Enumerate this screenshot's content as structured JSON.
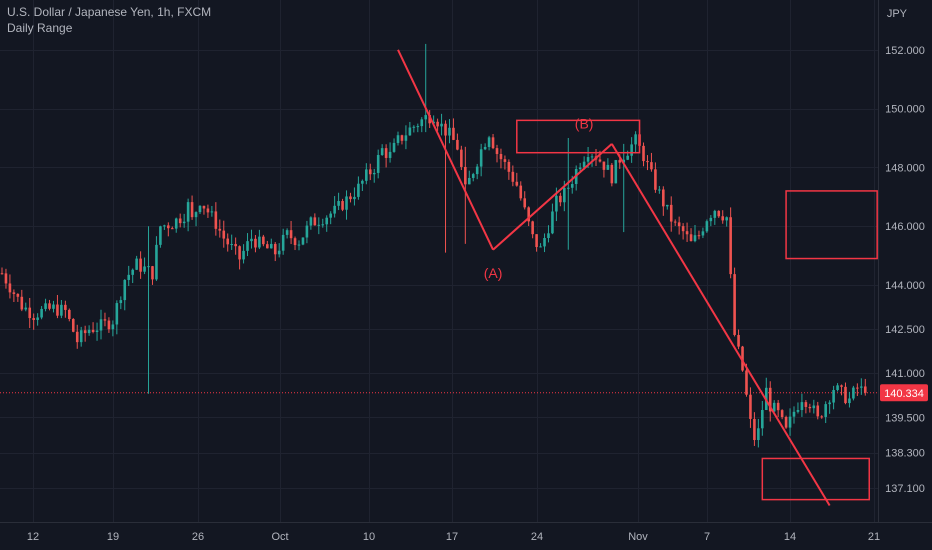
{
  "header": {
    "title": "U.S. Dollar / Japanese Yen, 1h, FXCM",
    "subtitle": "Daily Range",
    "currency": "JPY"
  },
  "colors": {
    "background": "#131722",
    "grid": "#1f2330",
    "up": "#26a69a",
    "down": "#ef5350",
    "drawing": "#f23645",
    "axis_text": "#b2b5be"
  },
  "chart_data": {
    "type": "candlestick",
    "symbol": "USDJPY",
    "interval": "1h",
    "y_ticks": [
      152.0,
      150.0,
      148.0,
      146.0,
      144.0,
      142.5,
      141.0,
      139.5,
      138.3,
      137.1
    ],
    "y_tick_labels": [
      "152.000",
      "150.000",
      "148.000",
      "146.000",
      "144.000",
      "142.500",
      "141.000",
      "139.500",
      "138.300",
      "137.100"
    ],
    "x_labels": [
      "12",
      "19",
      "26",
      "Oct",
      "10",
      "17",
      "24",
      "Nov",
      "7",
      "14",
      "21"
    ],
    "last_price": 140.334,
    "last_price_label": "140.334",
    "price_path": [
      [
        0,
        144.4
      ],
      [
        5,
        143.3
      ],
      [
        8,
        143.0
      ],
      [
        10,
        143.1
      ],
      [
        13,
        143.2
      ],
      [
        16,
        143.1
      ],
      [
        19,
        142.1
      ],
      [
        22,
        142.5
      ],
      [
        25,
        142.6
      ],
      [
        28,
        142.8
      ],
      [
        31,
        144.2
      ],
      [
        34,
        144.7
      ],
      [
        38,
        144.4
      ],
      [
        40,
        146.0
      ],
      [
        43,
        146.1
      ],
      [
        46,
        146.4
      ],
      [
        47,
        146.7
      ],
      [
        48,
        146.2
      ],
      [
        50,
        146.9
      ],
      [
        52,
        146.5
      ],
      [
        54,
        146.1
      ],
      [
        56,
        145.6
      ],
      [
        60,
        144.9
      ],
      [
        63,
        145.6
      ],
      [
        66,
        145.3
      ],
      [
        69,
        145.1
      ],
      [
        72,
        145.7
      ],
      [
        75,
        145.5
      ],
      [
        78,
        146.1
      ],
      [
        81,
        146.3
      ],
      [
        84,
        146.5
      ],
      [
        87,
        146.9
      ],
      [
        90,
        147.3
      ],
      [
        92,
        147.7
      ],
      [
        94,
        148.0
      ],
      [
        96,
        148.6
      ],
      [
        98,
        148.4
      ],
      [
        100,
        148.9
      ],
      [
        103,
        149.3
      ],
      [
        107,
        149.7
      ],
      [
        109,
        149.8
      ],
      [
        111,
        149.4
      ],
      [
        113,
        149.1
      ],
      [
        115,
        148.7
      ],
      [
        117,
        147.2
      ],
      [
        119,
        147.9
      ],
      [
        121,
        148.6
      ],
      [
        123,
        149.2
      ],
      [
        125,
        148.5
      ],
      [
        127,
        148.1
      ],
      [
        130,
        147.4
      ],
      [
        132,
        146.5
      ],
      [
        134,
        145.6
      ],
      [
        136,
        145.2
      ],
      [
        138,
        146.0
      ],
      [
        140,
        146.8
      ],
      [
        142,
        147.1
      ],
      [
        144,
        147.6
      ],
      [
        146,
        148.2
      ],
      [
        148,
        148.6
      ],
      [
        150,
        148.4
      ],
      [
        152,
        148.1
      ],
      [
        154,
        147.7
      ],
      [
        156,
        148.3
      ],
      [
        158,
        148.6
      ],
      [
        160,
        148.9
      ],
      [
        162,
        148.4
      ],
      [
        164,
        147.7
      ],
      [
        166,
        147.1
      ],
      [
        168,
        146.5
      ],
      [
        170,
        146.0
      ],
      [
        172,
        145.8
      ],
      [
        174,
        145.4
      ],
      [
        176,
        145.7
      ],
      [
        178,
        146.3
      ],
      [
        180,
        146.6
      ],
      [
        182,
        146.4
      ],
      [
        183,
        146.3
      ],
      [
        184,
        144.2
      ],
      [
        185,
        142.3
      ],
      [
        186,
        141.7
      ],
      [
        187,
        141.1
      ],
      [
        188,
        140.2
      ],
      [
        189,
        139.3
      ],
      [
        190,
        138.8
      ],
      [
        191,
        139.0
      ],
      [
        192,
        139.8
      ],
      [
        193,
        140.4
      ],
      [
        194,
        139.9
      ],
      [
        196,
        139.6
      ],
      [
        198,
        139.0
      ],
      [
        200,
        139.7
      ],
      [
        202,
        140.2
      ],
      [
        204,
        140.0
      ],
      [
        206,
        139.4
      ],
      [
        208,
        140.0
      ],
      [
        210,
        140.5
      ],
      [
        212,
        140.3
      ],
      [
        214,
        140.1
      ],
      [
        216,
        140.5
      ],
      [
        218,
        140.334
      ]
    ],
    "spikes": [
      {
        "index": 37,
        "high": 146.0,
        "low": 140.3
      },
      {
        "index": 107,
        "high": 152.2,
        "low": 149.2
      },
      {
        "index": 112,
        "high": 149.6,
        "low": 145.1
      },
      {
        "index": 117,
        "high": 148.7,
        "low": 145.4
      },
      {
        "index": 143,
        "high": 149.0,
        "low": 145.2
      },
      {
        "index": 157,
        "high": 148.8,
        "low": 145.8
      }
    ],
    "annotations": [
      {
        "type": "line",
        "from": {
          "index": 100,
          "price": 152.0
        },
        "to": {
          "index": 124,
          "price": 145.2
        }
      },
      {
        "type": "line",
        "from": {
          "index": 124,
          "price": 145.2
        },
        "to": {
          "index": 154,
          "price": 148.8
        }
      },
      {
        "type": "line",
        "from": {
          "index": 154,
          "price": 148.8
        },
        "to": {
          "index": 209,
          "price": 136.5
        }
      },
      {
        "type": "rect",
        "x1": 130,
        "x2": 161,
        "top": 149.6,
        "bottom": 148.5
      },
      {
        "type": "rect",
        "x1": 198,
        "x2": 221,
        "top": 147.2,
        "bottom": 144.9
      },
      {
        "type": "rect",
        "x1": 192,
        "x2": 219,
        "top": 138.1,
        "bottom": 136.7
      },
      {
        "type": "label",
        "text": "(A)",
        "index": 124,
        "price": 144.4
      },
      {
        "type": "label",
        "text": "(B)",
        "index": 147,
        "price": 149.5
      }
    ]
  }
}
